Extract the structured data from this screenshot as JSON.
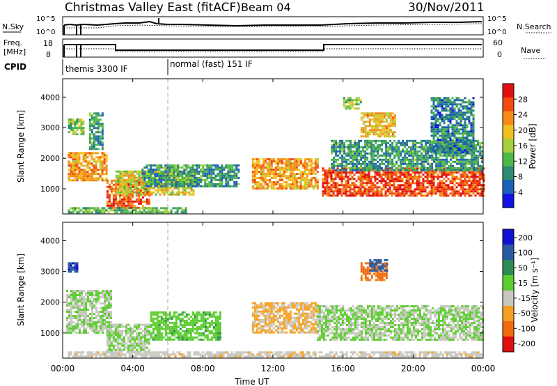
{
  "header": {
    "site": "Christmas Valley East (fitACF)",
    "beam": "Beam 04",
    "date": "30/Nov/2011"
  },
  "strips": {
    "nsky_label": "N.Sky",
    "nsky_ticks": [
      "10^5",
      "10^0"
    ],
    "nsearch_label": "N.Search",
    "nsearch_ticks": [
      "10^5",
      "10^0"
    ],
    "freq_label": "Freq.",
    "freq_unit": "[MHz]",
    "freq_ticks": [
      "18",
      "8"
    ],
    "nave_label": "Nave",
    "nave_ticks": [
      "60",
      "0"
    ],
    "cpid_label": "CPID",
    "cpid_modes": [
      {
        "label": "themis 3300 IF",
        "start_h": 0,
        "end_h": 6
      },
      {
        "label": "normal (fast) 151 IF",
        "start_h": 6,
        "end_h": 24
      }
    ]
  },
  "time_axis": {
    "label": "Time UT",
    "ticks": [
      "00:00",
      "04:00",
      "08:00",
      "12:00",
      "16:00",
      "20:00",
      "00:00"
    ],
    "range_h": [
      0,
      24
    ]
  },
  "chart_data": [
    {
      "type": "heatmap",
      "name": "power",
      "ylabel": "Slant Range [km]",
      "yticks": [
        "1000",
        "2000",
        "3000",
        "4000"
      ],
      "ylim": [
        180,
        4600
      ],
      "xlim": [
        0,
        24
      ],
      "colorbar": {
        "label": "Power [dB]",
        "ticks": [
          "4",
          "8",
          "12",
          "16",
          "20",
          "24",
          "28"
        ],
        "range": [
          0,
          32
        ],
        "colors": [
          "#1010e0",
          "#1c5fb8",
          "#2e8a70",
          "#4fb84a",
          "#a6cf3e",
          "#f0c020",
          "#f58a18",
          "#f04a10",
          "#e01010"
        ]
      },
      "regions": [
        {
          "t0": 0.3,
          "t1": 2.5,
          "r0": 1300,
          "r1": 2200,
          "level": 22
        },
        {
          "t0": 0.3,
          "t1": 1.2,
          "r0": 2800,
          "r1": 3300,
          "level": 14
        },
        {
          "t0": 1.5,
          "t1": 2.3,
          "r0": 2300,
          "r1": 3500,
          "level": 10
        },
        {
          "t0": 2.5,
          "t1": 5.0,
          "r0": 400,
          "r1": 1300,
          "level": 26
        },
        {
          "t0": 3.0,
          "t1": 7.5,
          "r0": 800,
          "r1": 1600,
          "level": 18
        },
        {
          "t0": 4.5,
          "t1": 10.0,
          "r0": 1100,
          "r1": 1800,
          "level": 10
        },
        {
          "t0": 10.8,
          "t1": 14.5,
          "r0": 1000,
          "r1": 2000,
          "level": 22
        },
        {
          "t0": 14.8,
          "t1": 24.0,
          "r0": 800,
          "r1": 1700,
          "level": 27
        },
        {
          "t0": 15.3,
          "t1": 24.0,
          "r0": 1600,
          "r1": 2600,
          "level": 10
        },
        {
          "t0": 17.0,
          "t1": 19.0,
          "r0": 2700,
          "r1": 3500,
          "level": 20
        },
        {
          "t0": 16.0,
          "t1": 17.0,
          "r0": 3600,
          "r1": 4000,
          "level": 14
        },
        {
          "t0": 21.0,
          "t1": 23.5,
          "r0": 2200,
          "r1": 4000,
          "level": 8
        },
        {
          "t0": 0.3,
          "t1": 7.0,
          "r0": 200,
          "r1": 400,
          "level": 12
        }
      ]
    },
    {
      "type": "heatmap",
      "name": "velocity",
      "ylabel": "Slant Range [km]",
      "yticks": [
        "1000",
        "2000",
        "3000",
        "4000"
      ],
      "ylim": [
        180,
        4600
      ],
      "xlim": [
        0,
        24
      ],
      "colorbar": {
        "label": "Velocity [m s⁻¹]",
        "ticks": [
          "200",
          "100",
          "50",
          "15",
          "-15",
          "-50",
          "-100",
          "-200"
        ],
        "range": [
          -250,
          250
        ],
        "colors": [
          "#1010d0",
          "#2a5aa0",
          "#2e8a50",
          "#5ccd30",
          "#c8c8c0",
          "#f5a020",
          "#f06a10",
          "#e01010"
        ]
      },
      "regions": [
        {
          "t0": 0.2,
          "t1": 2.8,
          "r0": 1000,
          "r1": 2400,
          "level": 0
        },
        {
          "t0": 2.5,
          "t1": 5.0,
          "r0": 400,
          "r1": 1300,
          "level": 0
        },
        {
          "t0": 5.0,
          "t1": 9.0,
          "r0": 800,
          "r1": 1700,
          "level": 40
        },
        {
          "t0": 10.8,
          "t1": 14.5,
          "r0": 1000,
          "r1": 2000,
          "level": -70
        },
        {
          "t0": 14.5,
          "t1": 24.0,
          "r0": 800,
          "r1": 1900,
          "level": 0
        },
        {
          "t0": 17.0,
          "t1": 18.5,
          "r0": 2700,
          "r1": 3300,
          "level": -150
        },
        {
          "t0": 0.3,
          "t1": 0.8,
          "r0": 3000,
          "r1": 3300,
          "level": 180
        },
        {
          "t0": 17.5,
          "t1": 18.5,
          "r0": 3000,
          "r1": 3400,
          "level": 150
        },
        {
          "t0": 0.3,
          "t1": 24.0,
          "r0": 200,
          "r1": 400,
          "level": -40
        }
      ]
    }
  ]
}
